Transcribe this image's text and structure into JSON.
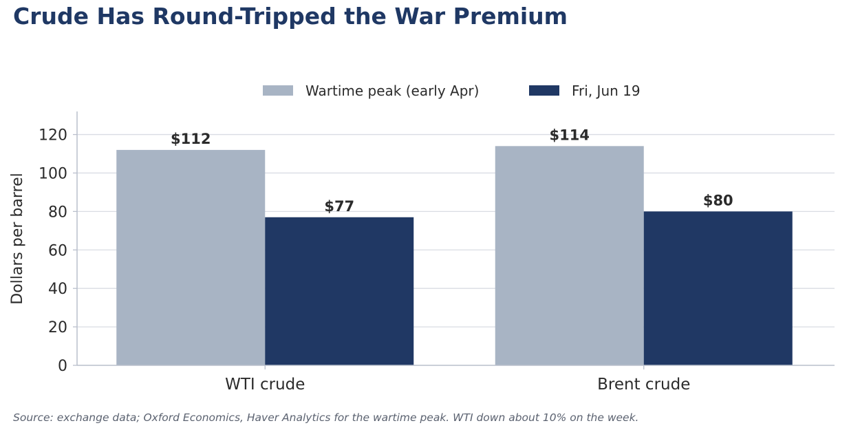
{
  "chart_data": {
    "type": "bar",
    "title": "Crude Has Round-Tripped the War Premium",
    "xlabel": "",
    "ylabel": "Dollars per barrel",
    "categories": [
      "WTI crude",
      "Brent crude"
    ],
    "series": [
      {
        "name": "Wartime peak (early Apr)",
        "values": [
          112,
          114
        ],
        "labels": [
          "$112",
          "$114"
        ],
        "color": "#a8b4c4"
      },
      {
        "name": "Fri, Jun 19",
        "values": [
          77,
          80
        ],
        "labels": [
          "$77",
          "$80"
        ],
        "color": "#203864"
      }
    ],
    "ylim": [
      0,
      132
    ],
    "yticks": [
      0,
      20,
      40,
      60,
      80,
      100,
      120
    ],
    "grid": true,
    "legend": "top-center",
    "source": "Source: exchange data; Oxford Economics, Haver Analytics for the wartime peak. WTI down about 10% on the week."
  }
}
